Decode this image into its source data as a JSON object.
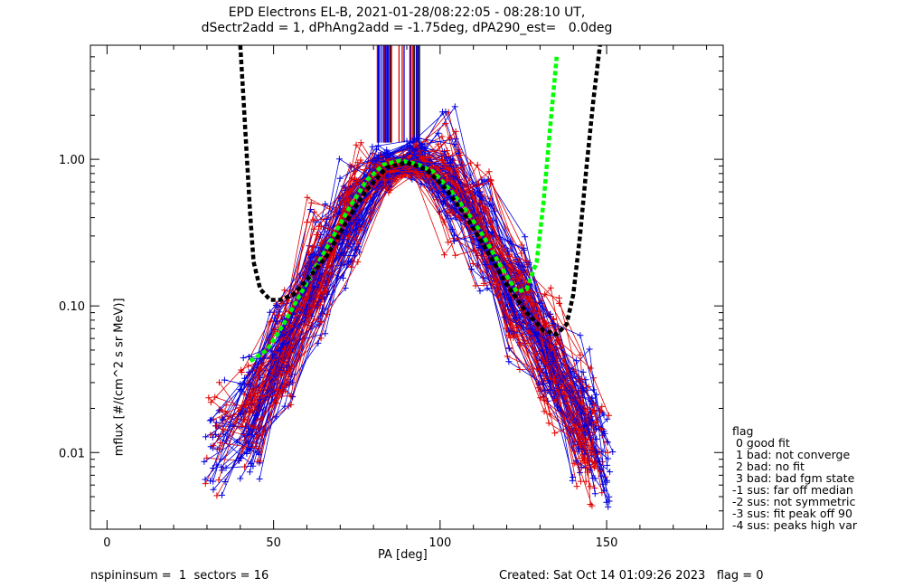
{
  "title": {
    "line1": "EPD Electrons EL-B, 2021-01-28/08:22:05 - 08:28:10 UT,",
    "line2": "dSectr2add = 1, dPhAng2add = -1.75deg, dPA290_est=   0.0deg"
  },
  "footer": {
    "left": "nspininsum =  1  sectors = 16",
    "right": "Created: Sat Oct 14 01:09:26 2023   flag = 0"
  },
  "legend": {
    "title": "flag",
    "items": [
      " 0 good fit",
      " 1 bad: not converge",
      " 2 bad: no fit",
      " 3 bad: bad fgm state",
      "-1 sus: far off median",
      "-2 sus: not symmetric",
      "-3 sus: fit peak off 90",
      "-4 sus: peaks high var"
    ]
  },
  "chart_data": {
    "type": "line",
    "xlabel": "PA [deg]",
    "ylabel": "mflux [#/(cm^2 s sr MeV)]",
    "xlim": [
      -5,
      185
    ],
    "ylim": [
      0.003,
      6.0
    ],
    "yscale": "log",
    "xticks": [
      0,
      50,
      100,
      150
    ],
    "xtick_labels": [
      "0",
      "50",
      "100",
      "150"
    ],
    "yticks": [
      0.01,
      0.1,
      1.0
    ],
    "ytick_labels": [
      "0.01",
      "0.10",
      "1.00"
    ],
    "colors": {
      "red": "#e00000",
      "blue": "#0000e0",
      "green": "#00ff00",
      "black": "#000000"
    },
    "series": [
      {
        "color": "blue",
        "x": [
          33,
          43,
          53,
          63,
          73,
          83,
          93,
          103,
          113,
          123,
          133,
          143,
          148
        ],
        "y": [
          0.01,
          0.017,
          0.045,
          0.16,
          0.4,
          0.85,
          0.95,
          0.72,
          0.36,
          0.12,
          0.045,
          0.018,
          0.011
        ],
        "spread": 0.35,
        "count": 55
      },
      {
        "color": "red",
        "x": [
          33,
          43,
          53,
          63,
          73,
          83,
          93,
          103,
          113,
          123,
          133,
          143,
          147
        ],
        "y": [
          0.012,
          0.02,
          0.05,
          0.17,
          0.42,
          0.8,
          0.92,
          0.68,
          0.33,
          0.11,
          0.04,
          0.015,
          0.01
        ],
        "spread": 0.35,
        "count": 55
      },
      {
        "color": "green",
        "x": [
          43,
          48,
          53,
          58,
          63,
          68,
          73,
          78,
          83,
          88,
          93,
          98,
          103,
          108,
          113,
          118,
          123,
          126,
          129,
          131,
          133,
          135
        ],
        "y": [
          0.042,
          0.05,
          0.075,
          0.12,
          0.19,
          0.3,
          0.48,
          0.72,
          0.92,
          0.98,
          0.93,
          0.82,
          0.62,
          0.44,
          0.3,
          0.19,
          0.125,
          0.13,
          0.2,
          0.5,
          1.6,
          5.0
        ],
        "style": "dashed"
      },
      {
        "color": "black",
        "x": [
          40,
          41,
          42,
          43,
          44,
          46,
          49,
          52,
          56,
          60,
          66,
          72,
          78,
          84,
          90,
          96,
          102,
          108,
          114,
          120,
          126,
          131,
          135,
          138,
          140,
          142,
          144,
          146,
          148
        ],
        "y": [
          6.0,
          2.5,
          1.0,
          0.42,
          0.2,
          0.13,
          0.11,
          0.11,
          0.12,
          0.15,
          0.22,
          0.38,
          0.62,
          0.88,
          0.95,
          0.85,
          0.62,
          0.4,
          0.24,
          0.14,
          0.09,
          0.068,
          0.064,
          0.075,
          0.12,
          0.3,
          0.9,
          2.5,
          6.0
        ],
        "style": "dashed"
      }
    ],
    "spikes": {
      "x_range": [
        81,
        94
      ],
      "y_bottom": 1.3,
      "y_top": 6.0,
      "colors": [
        "blue",
        "red",
        "black",
        "blue",
        "red",
        "blue"
      ]
    }
  }
}
